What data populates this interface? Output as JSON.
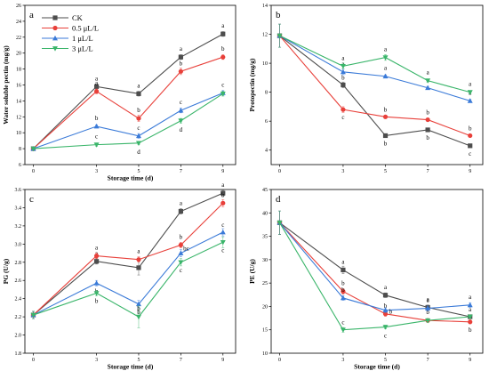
{
  "figure": {
    "legend": {
      "entries": [
        {
          "label": "CK",
          "color": "#4d4d4d",
          "marker": "square"
        },
        {
          "label": "0.5 μL/L",
          "color": "#e8403a",
          "marker": "circle"
        },
        {
          "label": "1 μL/L",
          "color": "#3a7ad8",
          "marker": "triangle-up"
        },
        {
          "label": "3 μL/L",
          "color": "#3ab56a",
          "marker": "triangle-down"
        }
      ]
    }
  },
  "chart_data": [
    {
      "panel": "a",
      "type": "line",
      "xlabel": "Storage time (d)",
      "ylabel": "Water soluble pectin (mg/g)",
      "x": [
        0,
        3,
        5,
        7,
        9
      ],
      "xticks": [
        "0",
        "3",
        "5",
        "7",
        "9"
      ],
      "ylim": [
        6,
        26
      ],
      "yticks": [
        6,
        8,
        10,
        12,
        14,
        16,
        18,
        20,
        22,
        24,
        26
      ],
      "series": [
        {
          "name": "CK",
          "values": [
            8.0,
            15.8,
            14.9,
            19.5,
            22.4
          ],
          "letters": [
            "",
            "a",
            "a",
            "a",
            "a"
          ],
          "errors": [
            0.1,
            0.3,
            0.3,
            0.3,
            0.3
          ]
        },
        {
          "name": "0.5 μL/L",
          "values": [
            8.0,
            15.2,
            11.8,
            17.7,
            19.5
          ],
          "letters": [
            "",
            "a",
            "b",
            "b",
            "b"
          ],
          "errors": [
            0.1,
            0.3,
            0.4,
            0.4,
            0.3
          ]
        },
        {
          "name": "1 μL/L",
          "values": [
            8.0,
            10.8,
            9.6,
            12.8,
            15.0
          ],
          "letters": [
            "",
            "b",
            "c",
            "c",
            "c"
          ],
          "errors": [
            0.1,
            0.2,
            0.3,
            0.3,
            0.3
          ]
        },
        {
          "name": "3 μL/L",
          "values": [
            8.0,
            8.5,
            8.7,
            11.5,
            14.9
          ],
          "letters": [
            "",
            "c",
            "d",
            "d",
            ""
          ],
          "errors": [
            0.1,
            0.2,
            0.2,
            0.3,
            0.3
          ]
        }
      ]
    },
    {
      "panel": "b",
      "type": "line",
      "xlabel": "",
      "ylabel": "Protopectin (mg/g)",
      "x": [
        0,
        3,
        5,
        7,
        9
      ],
      "xticks": [
        "0",
        "3",
        "5",
        "7",
        "9"
      ],
      "ylim": [
        3,
        14
      ],
      "yticks": [
        4,
        6,
        8,
        10,
        12,
        14
      ],
      "series": [
        {
          "name": "CK",
          "values": [
            11.9,
            8.5,
            5.0,
            5.4,
            4.3
          ],
          "letters": [
            "",
            "b",
            "b",
            "b",
            "c"
          ],
          "errors": [
            0.8,
            0.2,
            0.1,
            0.1,
            0.1
          ]
        },
        {
          "name": "0.5 μL/L",
          "values": [
            11.9,
            6.8,
            6.3,
            6.1,
            5.0
          ],
          "letters": [
            "",
            "c",
            "b",
            "b",
            "b"
          ],
          "errors": [
            0.8,
            0.2,
            0.1,
            0.1,
            0.1
          ]
        },
        {
          "name": "1 μL/L",
          "values": [
            11.9,
            9.4,
            9.1,
            8.3,
            7.4
          ],
          "letters": [
            "",
            "a",
            "a",
            "a",
            "a"
          ],
          "errors": [
            0.8,
            0.2,
            0.1,
            0.1,
            0.1
          ]
        },
        {
          "name": "3 μL/L",
          "values": [
            11.9,
            9.8,
            10.4,
            8.8,
            8.0
          ],
          "letters": [
            "",
            "a",
            "a",
            "a",
            "a"
          ],
          "errors": [
            0.8,
            0.2,
            0.2,
            0.1,
            0.1
          ]
        }
      ]
    },
    {
      "panel": "c",
      "type": "line",
      "xlabel": "Storage time (d)",
      "ylabel": "PG (U/g)",
      "x": [
        0,
        3,
        5,
        7,
        9
      ],
      "xticks": [
        "0",
        "3",
        "5",
        "7",
        "9"
      ],
      "ylim": [
        1.8,
        3.6
      ],
      "yticks": [
        "1.8",
        "2.0",
        "2.2",
        "2.4",
        "2.6",
        "2.8",
        "3.0",
        "3.2",
        "3.4",
        "3.6"
      ],
      "series": [
        {
          "name": "CK",
          "values": [
            2.22,
            2.81,
            2.74,
            3.36,
            3.56
          ],
          "letters": [
            "",
            "a",
            "a",
            "a",
            "a"
          ],
          "errors": [
            0.04,
            0.03,
            0.08,
            0.03,
            0.03
          ]
        },
        {
          "name": "0.5 μL/L",
          "values": [
            2.22,
            2.87,
            2.83,
            2.99,
            3.45
          ],
          "letters": [
            "",
            "a",
            "a",
            "b",
            "b"
          ],
          "errors": [
            0.04,
            0.03,
            0.03,
            0.03,
            0.04
          ]
        },
        {
          "name": "1 μL/L",
          "values": [
            2.22,
            2.57,
            2.34,
            2.9,
            3.13
          ],
          "letters": [
            "",
            "b",
            "b",
            "bc",
            "c"
          ],
          "errors": [
            0.04,
            0.03,
            0.04,
            0.04,
            0.04
          ]
        },
        {
          "name": "3 μL/L",
          "values": [
            2.22,
            2.46,
            2.2,
            2.8,
            3.02
          ],
          "letters": [
            "",
            "b",
            "b",
            "c",
            "c"
          ],
          "errors": [
            0.04,
            0.03,
            0.12,
            0.04,
            0.06
          ]
        }
      ]
    },
    {
      "panel": "d",
      "type": "line",
      "xlabel": "Storage time (d)",
      "ylabel": "PE (U/g)",
      "x": [
        0,
        3,
        5,
        7,
        9
      ],
      "xticks": [
        "0",
        "3",
        "5",
        "7",
        "9"
      ],
      "ylim": [
        10,
        45
      ],
      "yticks": [
        10,
        15,
        20,
        25,
        30,
        35,
        40,
        45
      ],
      "series": [
        {
          "name": "CK",
          "values": [
            37.9,
            27.8,
            22.4,
            19.8,
            17.8
          ],
          "letters": [
            "",
            "a",
            "a",
            "a",
            "a"
          ],
          "errors": [
            2.5,
            0.8,
            0.5,
            0.5,
            0.4
          ]
        },
        {
          "name": "0.5 μL/L",
          "values": [
            37.9,
            23.2,
            18.4,
            17.0,
            16.7
          ],
          "letters": [
            "",
            "b",
            "b",
            "b",
            "b"
          ],
          "errors": [
            2.5,
            0.6,
            0.5,
            0.4,
            0.4
          ]
        },
        {
          "name": "1 μL/L",
          "values": [
            37.9,
            21.8,
            19.2,
            19.6,
            20.3
          ],
          "letters": [
            "",
            "b",
            "b",
            "a",
            "a"
          ],
          "errors": [
            2.5,
            0.5,
            0.5,
            0.5,
            0.5
          ]
        },
        {
          "name": "3 μL/L",
          "values": [
            37.9,
            15.0,
            15.6,
            17.0,
            17.8
          ],
          "letters": [
            "",
            "c",
            "c",
            "",
            ""
          ],
          "errors": [
            2.5,
            0.5,
            0.4,
            0.4,
            0.4
          ]
        }
      ]
    }
  ]
}
